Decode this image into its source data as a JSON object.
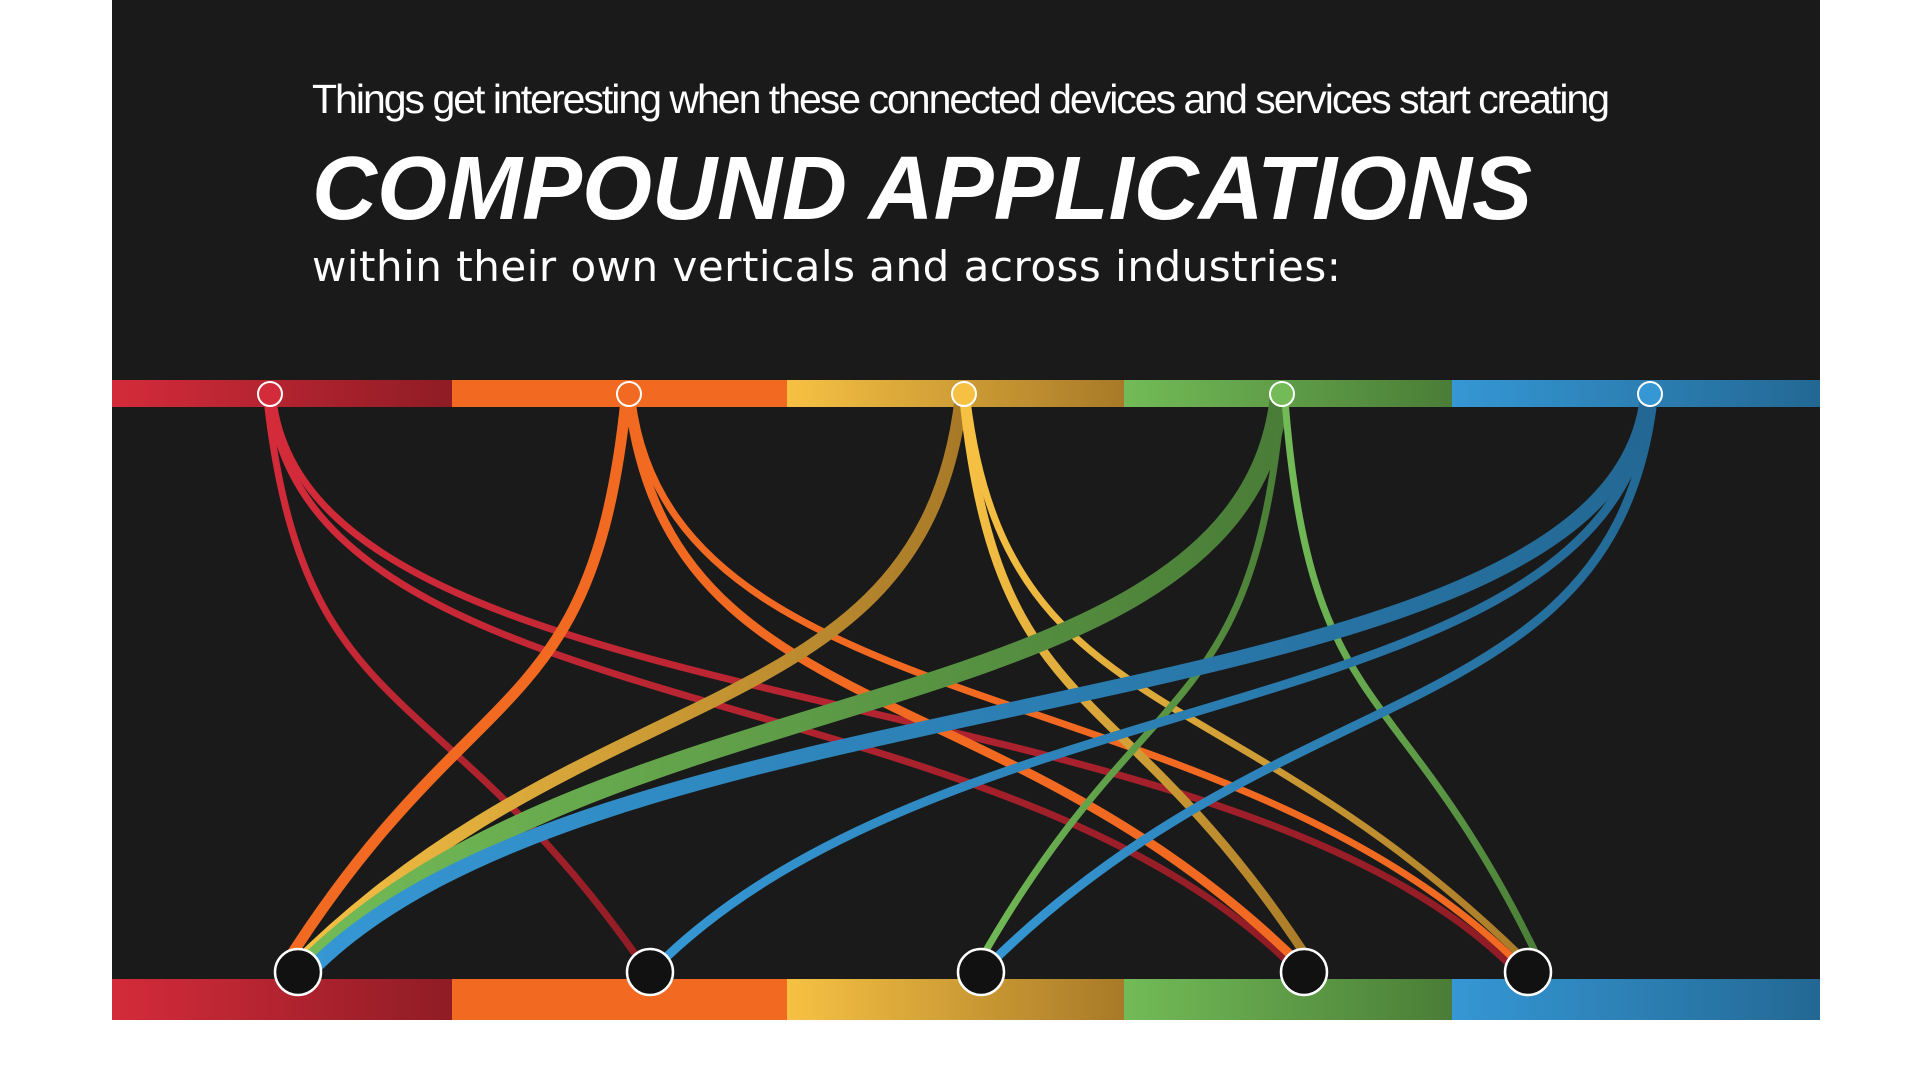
{
  "headline": {
    "intro": "Things get interesting when these connected devices and services start creating",
    "title": "COMPOUND APPLICATIONS",
    "subtitle": "within their own verticals and across industries:"
  },
  "colors": {
    "background": "#1a1a1a",
    "red": [
      "#d42b3a",
      "#8f1c25"
    ],
    "orange": [
      "#f26a21",
      "#f26a21"
    ],
    "yellow": [
      "#f6c143",
      "#a87a28"
    ],
    "green": [
      "#72bb57",
      "#4a7d37"
    ],
    "blue": [
      "#3597d4",
      "#236894"
    ]
  },
  "verticals": [
    {
      "id": "red",
      "name": "vertical-red"
    },
    {
      "id": "orange",
      "name": "vertical-orange"
    },
    {
      "id": "yellow",
      "name": "vertical-yellow"
    },
    {
      "id": "green",
      "name": "vertical-green"
    },
    {
      "id": "blue",
      "name": "vertical-blue"
    }
  ],
  "connections": [
    {
      "from": "red",
      "to": "orange",
      "weight": 2
    },
    {
      "from": "red",
      "to": "green",
      "weight": 2
    },
    {
      "from": "red",
      "to": "blue",
      "weight": 2
    },
    {
      "from": "orange",
      "to": "red",
      "weight": 4
    },
    {
      "from": "orange",
      "to": "green",
      "weight": 3
    },
    {
      "from": "orange",
      "to": "blue",
      "weight": 2
    },
    {
      "from": "yellow",
      "to": "red",
      "weight": 5
    },
    {
      "from": "yellow",
      "to": "green",
      "weight": 3
    },
    {
      "from": "yellow",
      "to": "blue",
      "weight": 2
    },
    {
      "from": "green",
      "to": "red",
      "weight": 8
    },
    {
      "from": "green",
      "to": "yellow",
      "weight": 2
    },
    {
      "from": "green",
      "to": "blue",
      "weight": 2
    },
    {
      "from": "blue",
      "to": "red",
      "weight": 6
    },
    {
      "from": "blue",
      "to": "orange",
      "weight": 3
    },
    {
      "from": "blue",
      "to": "yellow",
      "weight": 3
    }
  ]
}
